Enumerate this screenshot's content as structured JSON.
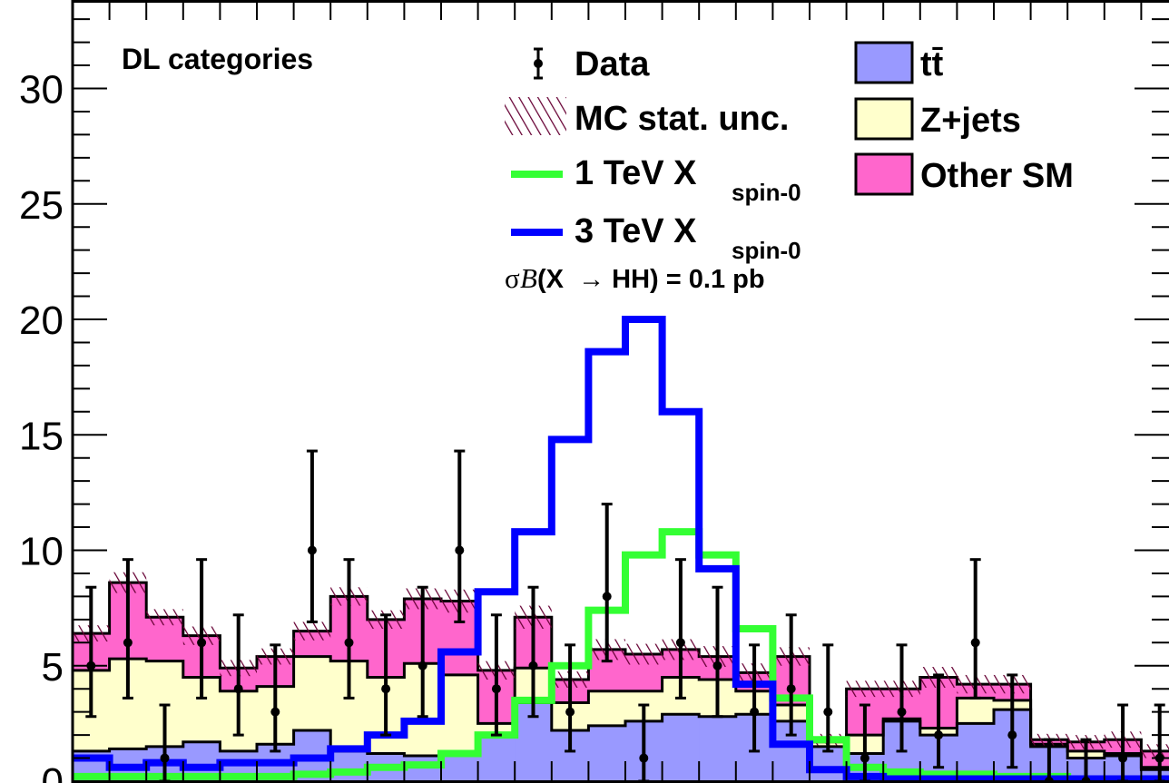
{
  "chart_data": {
    "type": "histogram",
    "category_label": "DL categories",
    "cross_section_note": {
      "sigma": "σ",
      "B": "B",
      "rest": "(X  → HH) = 0.1 pb"
    },
    "ylim": [
      0,
      33
    ],
    "yticks": [
      0,
      5,
      10,
      15,
      20,
      25,
      30
    ],
    "ytick_labels": [
      "0",
      "5",
      "10",
      "15",
      "20",
      "25",
      "30"
    ],
    "n_bins": 30,
    "colors": {
      "ttbar": "#9999ff",
      "zjets": "#ffffcc",
      "other": "#ff66cc",
      "signal_1tev": "#33ff33",
      "signal_3tev": "#0000ff",
      "hatch": "#660033"
    },
    "legend": [
      {
        "key": "data",
        "label": "Data"
      },
      {
        "key": "mcstat",
        "label": "MC stat. unc."
      },
      {
        "key": "signal_1tev",
        "label": "1 TeV X",
        "sub": "spin-0"
      },
      {
        "key": "signal_3tev",
        "label": "3 TeV X",
        "sub": "spin-0"
      },
      {
        "key": "ttbar",
        "label": "tt̄"
      },
      {
        "key": "zjets",
        "label": "Z+jets"
      },
      {
        "key": "other",
        "label": "Other SM"
      }
    ],
    "stack": {
      "ttbar": [
        1.3,
        1.4,
        1.5,
        1.7,
        1.3,
        1.6,
        2.2,
        1.3,
        1.2,
        1.1,
        1.2,
        2.0,
        3.4,
        2.2,
        2.4,
        2.6,
        2.9,
        2.8,
        2.9,
        2.6,
        1.5,
        1.2,
        2.6,
        2.0,
        2.5,
        3.1,
        1.5,
        1.0,
        1.1,
        0.5
      ],
      "zjets": [
        3.5,
        3.9,
        3.7,
        2.8,
        2.6,
        2.5,
        3.2,
        3.9,
        3.3,
        4.0,
        3.4,
        0.5,
        1.5,
        1.2,
        1.5,
        1.3,
        1.6,
        1.6,
        1.0,
        0.7,
        0.2,
        0.8,
        0.1,
        0.3,
        1.1,
        0.4,
        0.1,
        0.3,
        0.1,
        0.1
      ],
      "other": [
        1.6,
        3.3,
        1.9,
        1.8,
        1.0,
        1.3,
        1.1,
        2.8,
        2.5,
        2.8,
        3.2,
        2.3,
        2.2,
        1.0,
        1.8,
        1.6,
        1.2,
        1.0,
        0.8,
        2.1,
        0.1,
        2.0,
        1.3,
        2.2,
        0.6,
        0.7,
        0.2,
        0.4,
        0.6,
        0.7
      ]
    },
    "mc_stat_unc": [
      0.35,
      0.45,
      0.35,
      0.4,
      0.35,
      0.35,
      0.4,
      0.4,
      0.4,
      0.45,
      0.5,
      0.4,
      0.5,
      0.35,
      0.45,
      0.45,
      0.45,
      0.45,
      0.4,
      0.4,
      0.25,
      0.35,
      0.35,
      0.45,
      0.4,
      0.4,
      0.25,
      0.3,
      0.35,
      0.3
    ],
    "data": {
      "values": [
        5,
        6,
        1,
        6,
        4,
        3,
        10,
        6,
        4,
        5,
        10,
        4,
        5,
        3,
        8,
        1,
        6,
        5,
        3,
        4,
        3,
        1,
        3,
        2,
        6,
        2,
        0,
        0,
        1,
        1
      ],
      "err_low": [
        2.2,
        2.4,
        1.0,
        2.4,
        2.0,
        1.7,
        3.1,
        2.4,
        2.0,
        2.2,
        3.1,
        2.0,
        2.2,
        1.7,
        2.8,
        1.0,
        2.4,
        2.2,
        1.7,
        2.0,
        1.7,
        1.0,
        1.7,
        1.4,
        2.4,
        1.4,
        0,
        0,
        1.0,
        1.0
      ],
      "err_high": [
        3.4,
        3.6,
        2.3,
        3.6,
        3.2,
        2.9,
        4.3,
        3.6,
        3.2,
        3.4,
        4.3,
        3.2,
        3.4,
        2.9,
        4.0,
        2.3,
        3.6,
        3.4,
        2.9,
        3.2,
        2.9,
        2.3,
        2.9,
        2.6,
        3.6,
        2.6,
        1.8,
        1.8,
        2.3,
        2.3
      ]
    },
    "signal_1tev": [
      0.2,
      0.2,
      0.2,
      0.2,
      0.2,
      0.2,
      0.3,
      0.4,
      0.6,
      0.7,
      1.2,
      2.0,
      3.5,
      5.0,
      7.4,
      9.8,
      10.8,
      9.8,
      6.6,
      3.6,
      1.8,
      0.6,
      0.4,
      0.3,
      0.3,
      0.2,
      0.2,
      0.1,
      0.1,
      0.1
    ],
    "signal_3tev": [
      1.0,
      0.6,
      0.8,
      0.6,
      0.8,
      0.8,
      1.0,
      1.4,
      2.0,
      2.6,
      5.6,
      8.2,
      10.8,
      14.8,
      18.6,
      20.0,
      16.0,
      9.2,
      4.2,
      1.6,
      0.5,
      0.2,
      0.1,
      0.1,
      0.1,
      0.1,
      0.1,
      0.1,
      0.1,
      0.1
    ]
  }
}
